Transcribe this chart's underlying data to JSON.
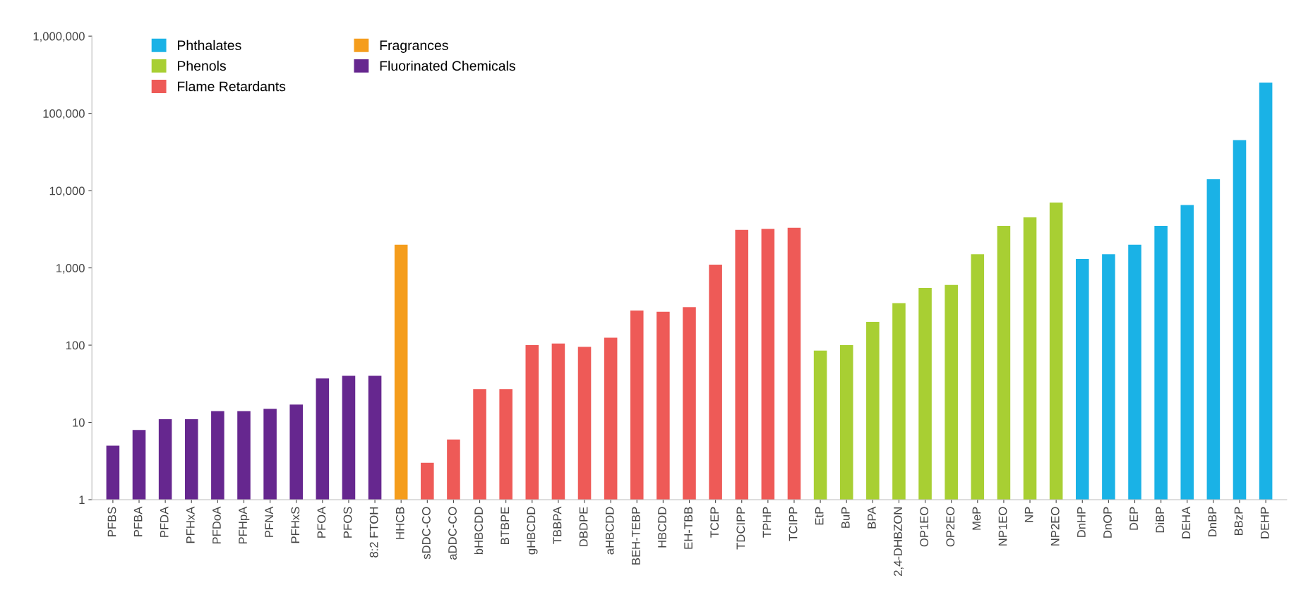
{
  "chart_data": {
    "type": "bar",
    "log": "y",
    "grid": false,
    "legend": "top left",
    "categories": [
      "PFBS",
      "PFBA",
      "PFDA",
      "PFHxA",
      "PFDoA",
      "PFHpA",
      "PFNA",
      "PFHxS",
      "PFOA",
      "PFOS",
      "8:2 FTOH",
      "HHCB",
      "sDDC-CO",
      "aDDC-CO",
      "bHBCDD",
      "BTBPE",
      "gHBCDD",
      "TBBPA",
      "DBDPE",
      "aHBCDD",
      "BEH-TEBP",
      "HBCDD",
      "EH-TBB",
      "TCEP",
      "TDCIPP",
      "TPHP",
      "TCIPP",
      "EtP",
      "BuP",
      "BPA",
      "2,4-DHBZON",
      "OP1EO",
      "OP2EO",
      "MeP",
      "NP1EO",
      "NP",
      "NP2EO",
      "DnHP",
      "DnOP",
      "DEP",
      "DiBP",
      "DEHA",
      "DnBP",
      "BBzP",
      "DEHP"
    ],
    "series": [
      {
        "name": "Phthalates",
        "color": "#1ab2e6",
        "values": [
          null,
          null,
          null,
          null,
          null,
          null,
          null,
          null,
          null,
          null,
          null,
          null,
          null,
          null,
          null,
          null,
          null,
          null,
          null,
          null,
          null,
          null,
          null,
          null,
          null,
          null,
          null,
          null,
          null,
          null,
          null,
          null,
          null,
          null,
          null,
          null,
          null,
          1300,
          1500,
          2000,
          3500,
          6500,
          14000,
          45000,
          250000
        ]
      },
      {
        "name": "Phenols",
        "color": "#a8cf33",
        "values": [
          null,
          null,
          null,
          null,
          null,
          null,
          null,
          null,
          null,
          null,
          null,
          null,
          null,
          null,
          null,
          null,
          null,
          null,
          null,
          null,
          null,
          null,
          null,
          null,
          null,
          null,
          null,
          85,
          100,
          200,
          350,
          550,
          600,
          1500,
          3500,
          4500,
          7000,
          null,
          null,
          null,
          null,
          null,
          null,
          null,
          null
        ]
      },
      {
        "name": "Flame Retardants",
        "color": "#ee5a57",
        "values": [
          null,
          null,
          null,
          null,
          null,
          null,
          null,
          null,
          null,
          null,
          null,
          null,
          3,
          6,
          27,
          27,
          100,
          105,
          95,
          125,
          280,
          270,
          310,
          1100,
          3100,
          3200,
          3300,
          null,
          null,
          null,
          null,
          null,
          null,
          null,
          null,
          null,
          null,
          null,
          null,
          null,
          null,
          null,
          null,
          null,
          null
        ]
      },
      {
        "name": "Fragrances",
        "color": "#f59d1c",
        "values": [
          null,
          null,
          null,
          null,
          null,
          null,
          null,
          null,
          null,
          null,
          null,
          2000,
          null,
          null,
          null,
          null,
          null,
          null,
          null,
          null,
          null,
          null,
          null,
          null,
          null,
          null,
          null,
          null,
          null,
          null,
          null,
          null,
          null,
          null,
          null,
          null,
          null,
          null,
          null,
          null,
          null,
          null,
          null,
          null,
          null
        ]
      },
      {
        "name": "Fluorinated Chemicals",
        "color": "#66278f",
        "values": [
          5,
          8,
          11,
          11,
          14,
          14,
          15,
          17,
          37,
          40,
          40,
          null,
          null,
          null,
          null,
          null,
          null,
          null,
          null,
          null,
          null,
          null,
          null,
          null,
          null,
          null,
          null,
          null,
          null,
          null,
          null,
          null,
          null,
          null,
          null,
          null,
          null,
          null,
          null,
          null,
          null,
          null,
          null,
          null,
          null
        ]
      }
    ],
    "ylim": [
      1,
      1000000
    ],
    "yticks": [
      {
        "value": 1,
        "label": "1"
      },
      {
        "value": 10,
        "label": "10"
      },
      {
        "value": 100,
        "label": "100"
      },
      {
        "value": 1000,
        "label": "1,000"
      },
      {
        "value": 10000,
        "label": "10,000"
      },
      {
        "value": 100000,
        "label": "100,000"
      },
      {
        "value": 1000000,
        "label": "1,000,000"
      }
    ]
  }
}
